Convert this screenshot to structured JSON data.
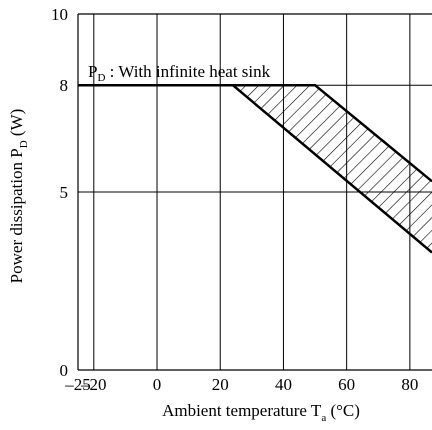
{
  "chart_data": {
    "type": "line",
    "title": "",
    "xlabel": {
      "main": "Ambient temperature T",
      "sub": "a",
      "unit": " (°C)"
    },
    "ylabel": {
      "main": "Power dissipation P",
      "sub": "D",
      "unit": " (W)"
    },
    "xlim": [
      -25,
      87
    ],
    "ylim": [
      0,
      10
    ],
    "x_ticks": [
      -25,
      -20,
      0,
      20,
      40,
      60,
      80
    ],
    "x_tick_labels": [
      "–25",
      "–20",
      "0",
      "20",
      "40",
      "60",
      "80"
    ],
    "y_ticks": [
      0,
      5,
      8,
      10
    ],
    "y_tick_labels": [
      "0",
      "5",
      "8",
      "10"
    ],
    "grid": true,
    "series": [
      {
        "x": [
          -25,
          24,
          50,
          87
        ],
        "y": [
          8,
          8,
          8,
          5.3
        ]
      }
    ],
    "hatched_band": {
      "lower_edge": {
        "x": [
          24,
          87
        ],
        "y": [
          8,
          3.3
        ]
      },
      "upper_edge": {
        "x": [
          50,
          87
        ],
        "y": [
          8,
          5.3
        ]
      }
    },
    "annotation": {
      "main": "P",
      "sub": "D",
      "rest": " : With infinite heat sink",
      "x": -25,
      "y": 8
    }
  }
}
